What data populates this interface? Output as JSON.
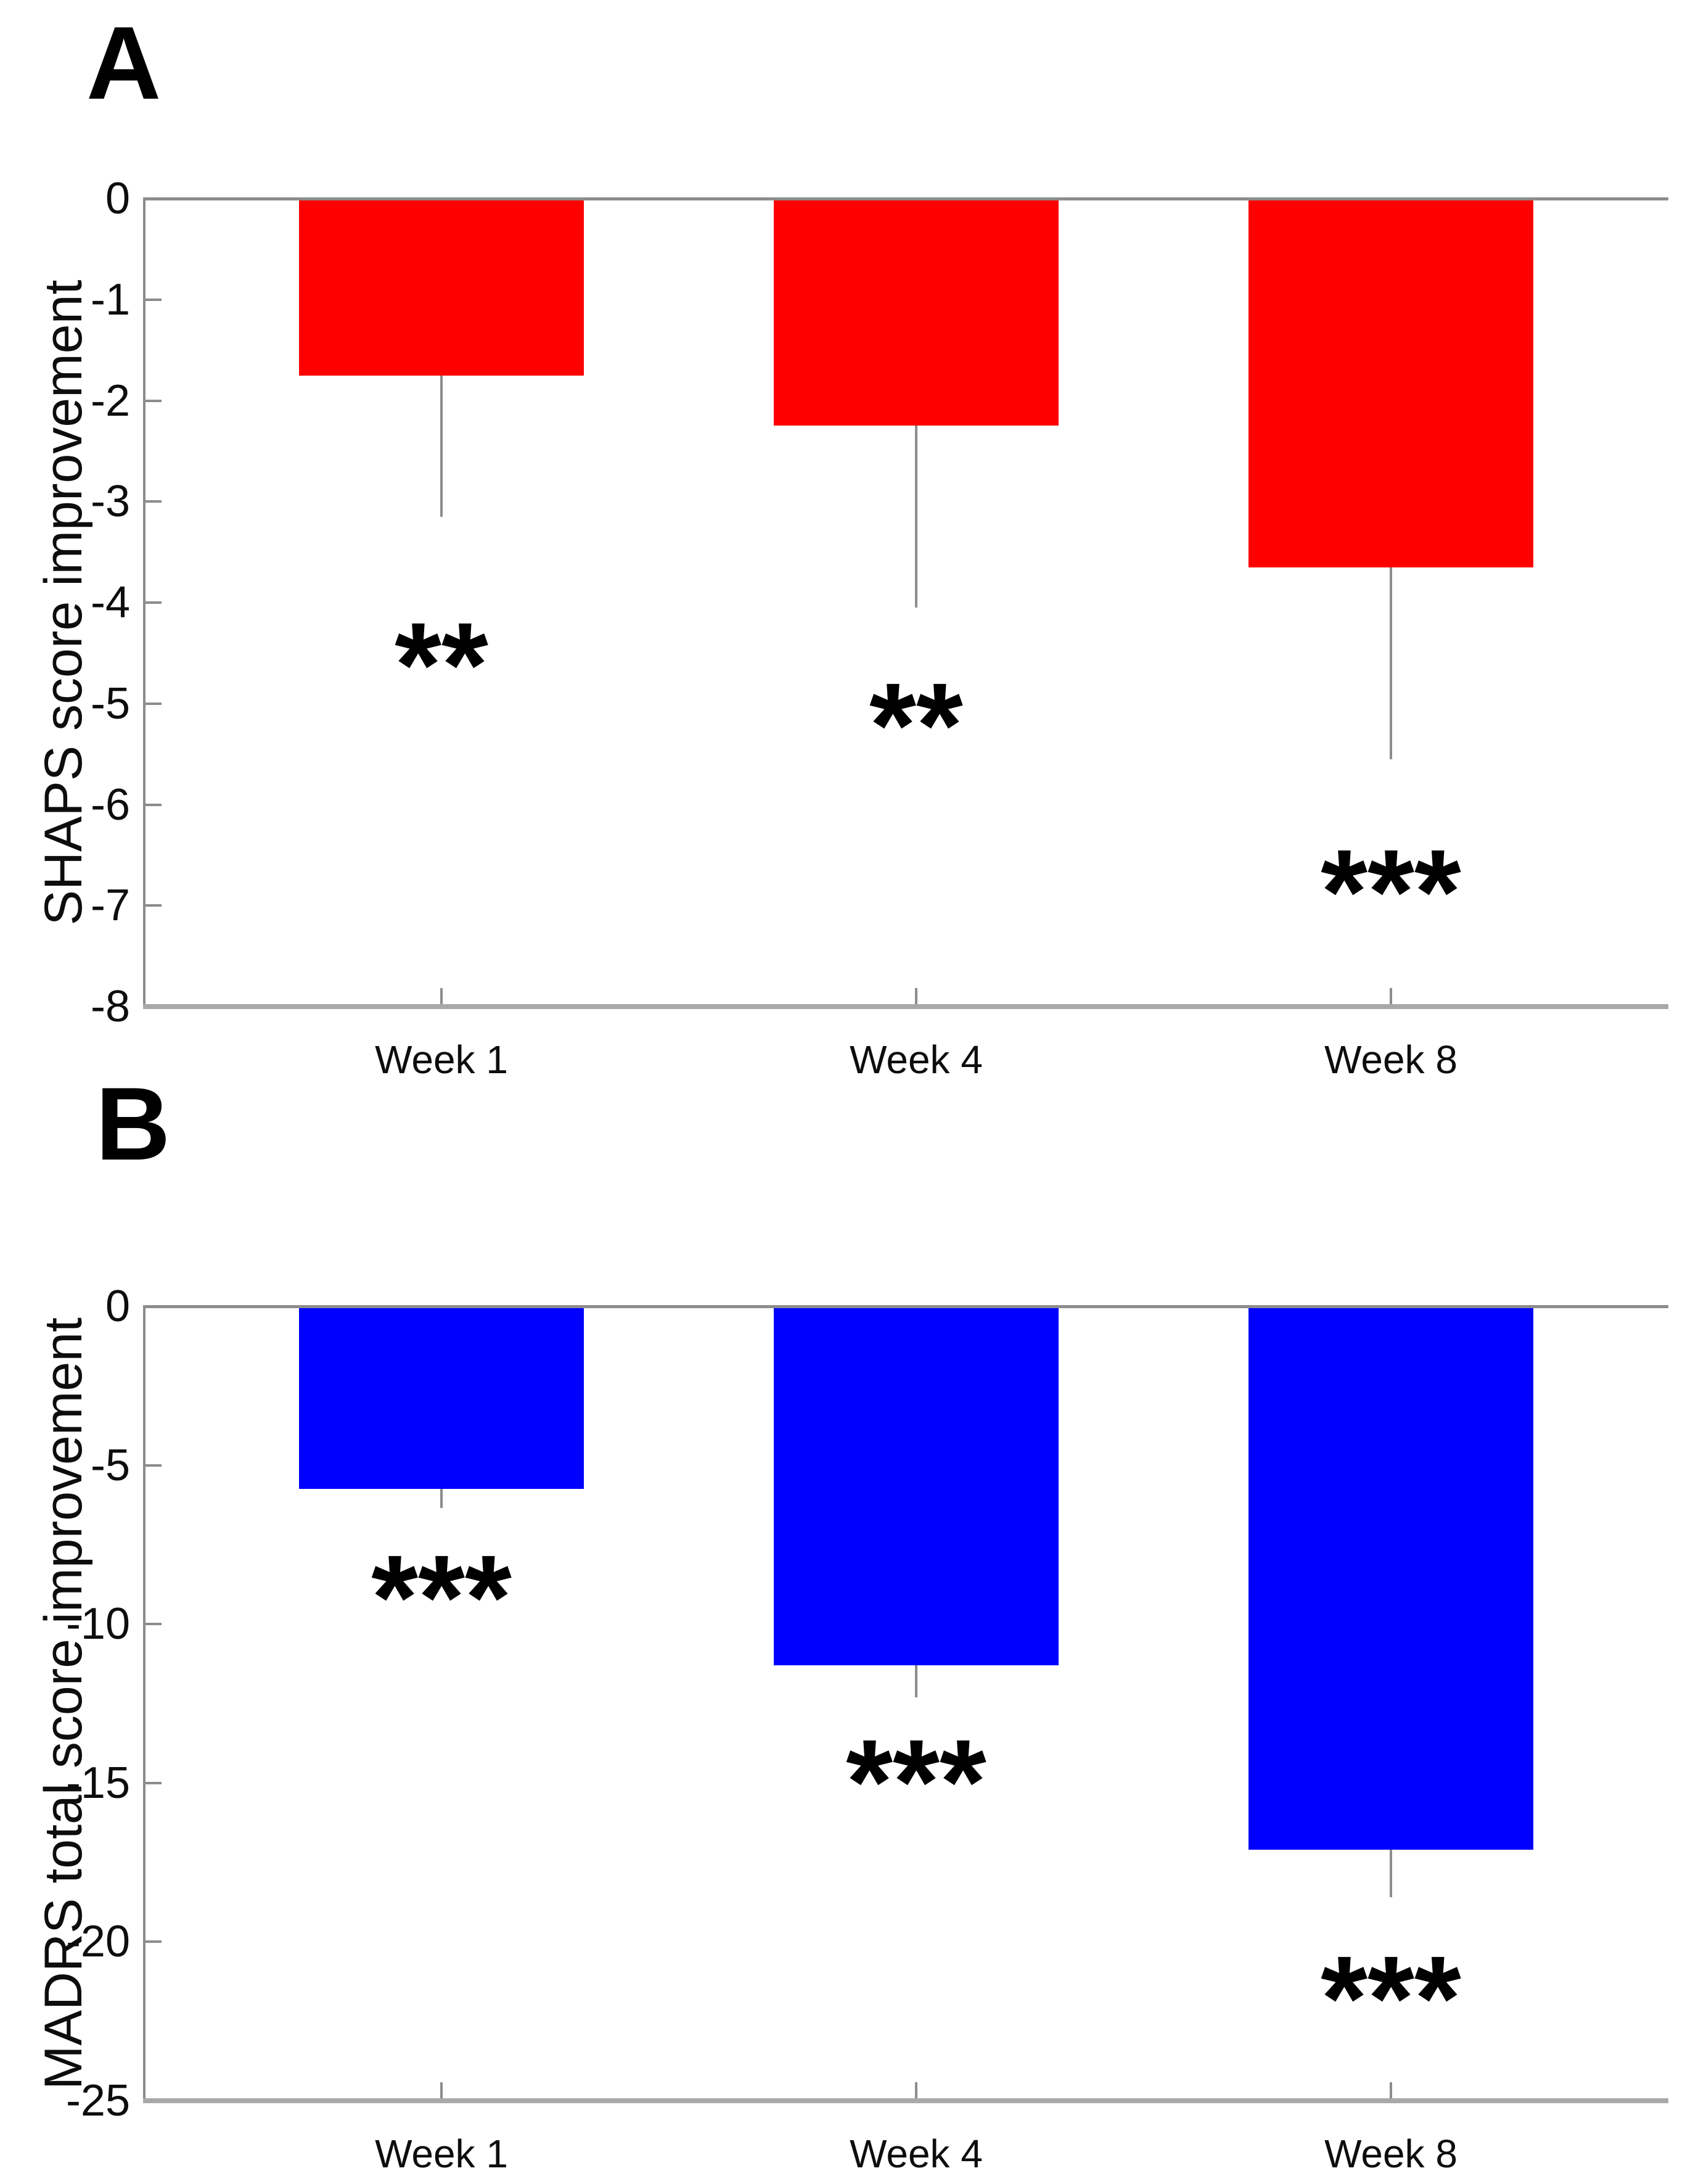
{
  "figure": {
    "background_color": "#ffffff",
    "text_color": "#000000",
    "axis_color": "#8c8c8c",
    "error_bar_color": "#8c8c8c"
  },
  "chart_data": [
    {
      "panel": "A",
      "type": "bar",
      "categories": [
        "Week 1",
        "Week 4",
        "Week 8"
      ],
      "values": [
        -1.75,
        -2.25,
        -3.65
      ],
      "error_whisker_to": [
        -3.15,
        -4.05,
        -5.55
      ],
      "significance": [
        "**",
        "**",
        "***"
      ],
      "significance_y": [
        -4.5,
        -5.1,
        -6.75
      ],
      "title": "",
      "xlabel": "",
      "ylabel": "SHAPS score improvement",
      "ylim": [
        -8,
        0
      ],
      "yticks": [
        0,
        -1,
        -2,
        -3,
        -4,
        -5,
        -6,
        -7,
        -8
      ],
      "bar_color": "#ff0000",
      "grid": false,
      "legend": null
    },
    {
      "panel": "B",
      "type": "bar",
      "categories": [
        "Week 1",
        "Week 4",
        "Week 8"
      ],
      "values": [
        -5.75,
        -11.3,
        -17.1
      ],
      "error_whisker_to": [
        -6.35,
        -12.3,
        -18.6
      ],
      "significance": [
        "***",
        "***",
        "***"
      ],
      "significance_y": [
        -8.8,
        -14.6,
        -21.4
      ],
      "title": "",
      "xlabel": "",
      "ylabel": "MADRS total score improvement",
      "ylim": [
        -25,
        0
      ],
      "yticks": [
        0,
        -5,
        -10,
        -15,
        -20,
        -25
      ],
      "bar_color": "#0000ff",
      "grid": false,
      "legend": null
    }
  ]
}
